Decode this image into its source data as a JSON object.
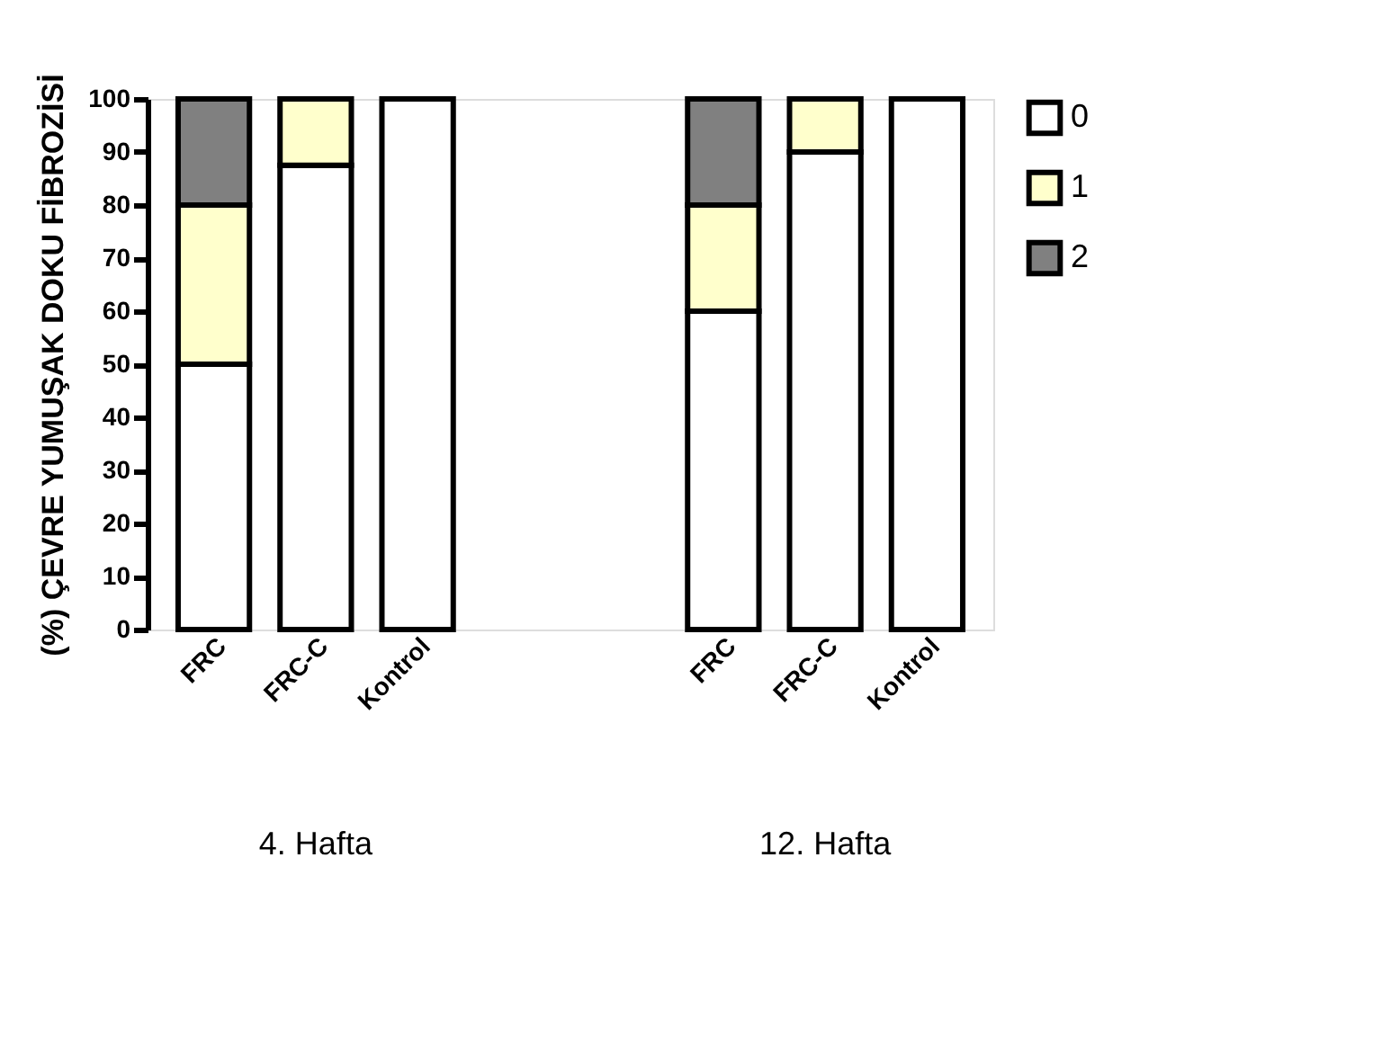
{
  "chart_data": {
    "type": "bar",
    "stacked": true,
    "categories": [
      "FRC",
      "FRC-C",
      "Kontrol",
      null,
      null,
      "FRC",
      "FRC-C",
      "Kontrol"
    ],
    "ylabel": "(%) ÇEVRE YUMUŞAK DOKU FİBROZİSİ",
    "series": [
      {
        "name": "0",
        "color": "#ffffff",
        "values": [
          50,
          87.5,
          100,
          null,
          null,
          60,
          90,
          100
        ]
      },
      {
        "name": "1",
        "color": "#ffffcc",
        "values": [
          30,
          12.5,
          null,
          null,
          null,
          20,
          10,
          null
        ]
      },
      {
        "name": "2",
        "color": "#808080",
        "values": [
          20,
          null,
          null,
          null,
          null,
          20,
          null,
          null
        ]
      }
    ],
    "ylim": [
      0,
      100
    ],
    "yticks": [
      0,
      10,
      20,
      30,
      40,
      50,
      60,
      70,
      80,
      90,
      100
    ],
    "annotations": [
      "4. Hafta",
      "12. Hafta"
    ],
    "legend": "top right",
    "grid": false
  }
}
